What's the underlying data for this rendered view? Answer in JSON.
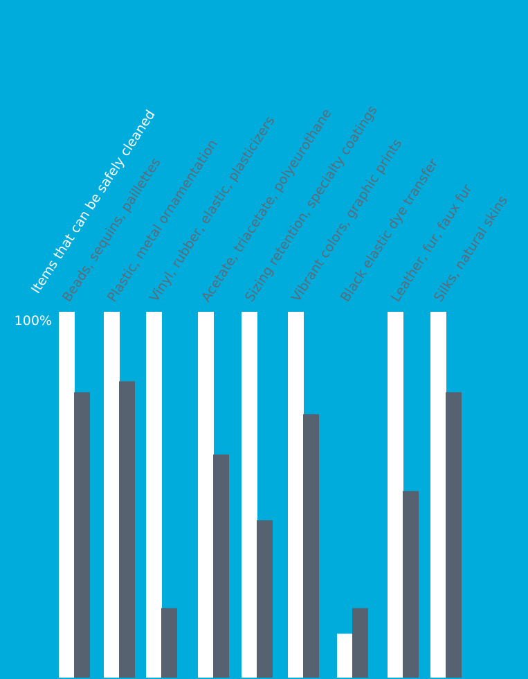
{
  "chart_data": {
    "type": "bar",
    "title": "",
    "header_label": "Items that can be safely cleaned",
    "y_tick_label": "100%",
    "categories": [
      "Beads, sequins, paillettes",
      "Plastic, metal ornamentation",
      "Vinyl, rubber, elastic, plasticizers",
      "Acetate,  triacetate, polyeurothane",
      "Sizing retention, specialty  coatings",
      "Vibrant colors, graphic prints",
      "Black elastic dye transfer",
      "Leather, fur, faux fur",
      "Silks, natural skins"
    ],
    "series": [
      {
        "values": [
          100,
          100,
          100,
          100,
          100,
          100,
          12,
          100,
          100
        ]
      },
      {
        "values": [
          78,
          81,
          19,
          61,
          43,
          72,
          19,
          51,
          78
        ]
      }
    ],
    "ylim": [
      0,
      100
    ],
    "colors": {
      "background": "#00acdc",
      "series_a": "#ffffff",
      "series_b": "#576270",
      "header_text": "#ffffff",
      "label_text": "#5d6a78"
    }
  }
}
